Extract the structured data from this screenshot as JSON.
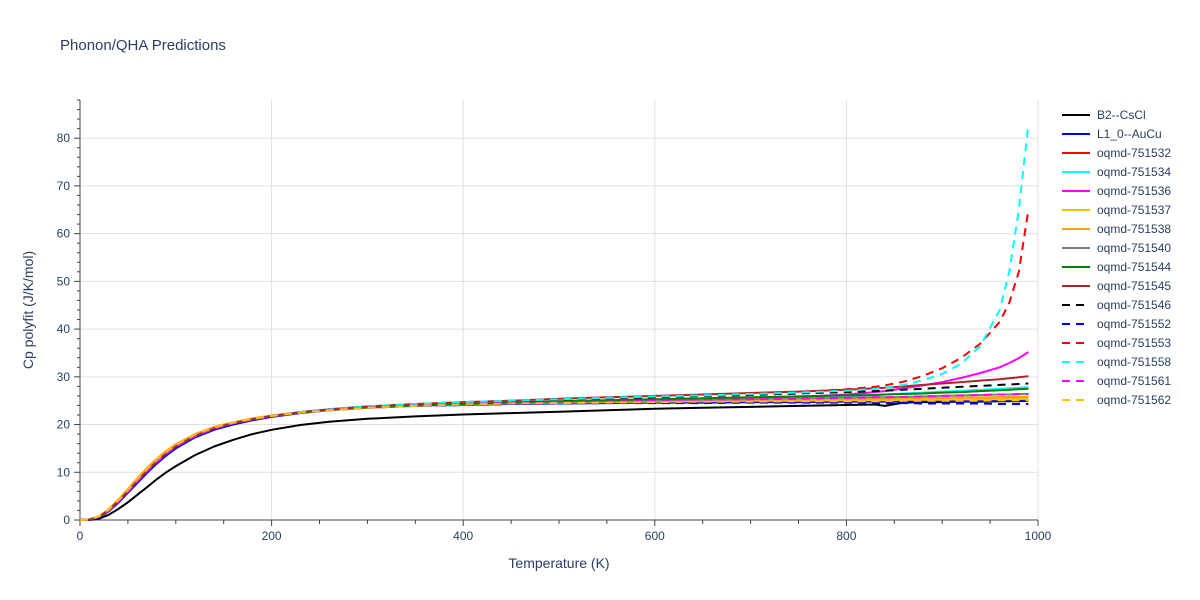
{
  "chart_data": {
    "type": "line",
    "title": "Phonon/QHA Predictions",
    "xlabel": "Temperature (K)",
    "ylabel": "Cp polyfit (J/K/mol)",
    "xlim": [
      0,
      1000
    ],
    "ylim": [
      0,
      88
    ],
    "xticks": [
      0,
      200,
      400,
      600,
      800,
      1000
    ],
    "yticks": [
      0,
      10,
      20,
      30,
      40,
      50,
      60,
      70,
      80
    ],
    "grid": true,
    "legend_position": "right",
    "x": [
      0,
      10,
      20,
      30,
      40,
      50,
      60,
      70,
      80,
      90,
      100,
      120,
      140,
      160,
      180,
      200,
      230,
      260,
      300,
      350,
      400,
      450,
      500,
      550,
      600,
      650,
      700,
      750,
      800,
      830,
      840,
      860,
      880,
      900,
      920,
      940,
      960,
      970,
      980,
      990
    ],
    "series": [
      {
        "name": "B2--CsCl",
        "color": "#000000",
        "dash": "solid",
        "values": [
          0,
          0,
          0.3,
          1.1,
          2.3,
          3.7,
          5.3,
          6.9,
          8.5,
          10.0,
          11.3,
          13.6,
          15.4,
          16.8,
          18.0,
          18.9,
          19.9,
          20.6,
          21.2,
          21.7,
          22.1,
          22.4,
          22.7,
          23.0,
          23.3,
          23.5,
          23.7,
          23.9,
          24.1,
          24.2,
          23.9,
          24.6,
          24.7,
          24.7,
          24.8,
          24.8,
          24.9,
          24.9,
          24.9,
          25.0
        ]
      },
      {
        "name": "L1_0--AuCu",
        "color": "#0000ff",
        "dash": "solid",
        "values": [
          0,
          0.1,
          0.6,
          1.8,
          3.6,
          5.7,
          7.8,
          9.9,
          11.8,
          13.5,
          15.0,
          17.3,
          18.9,
          20.0,
          20.9,
          21.6,
          22.4,
          23.0,
          23.5,
          23.9,
          24.1,
          24.3,
          24.4,
          24.5,
          24.6,
          24.6,
          24.7,
          24.7,
          24.8,
          24.8,
          24.8,
          24.8,
          24.9,
          24.9,
          24.9,
          24.9,
          25.0,
          25.0,
          25.0,
          25.0
        ]
      },
      {
        "name": "oqmd-751532",
        "color": "#ff0000",
        "dash": "solid",
        "values": [
          0,
          0.1,
          0.7,
          2.0,
          3.9,
          6.0,
          8.2,
          10.3,
          12.2,
          13.9,
          15.4,
          17.6,
          19.2,
          20.3,
          21.1,
          21.8,
          22.5,
          23.1,
          23.6,
          24.0,
          24.3,
          24.5,
          24.7,
          24.8,
          24.9,
          25.0,
          25.1,
          25.2,
          25.3,
          25.3,
          25.4,
          25.4,
          25.5,
          25.5,
          25.6,
          25.6,
          25.7,
          25.7,
          25.8,
          25.8
        ]
      },
      {
        "name": "oqmd-751534",
        "color": "#00ffff",
        "dash": "solid",
        "values": [
          0,
          0.1,
          0.7,
          2.0,
          3.9,
          6.0,
          8.2,
          10.3,
          12.2,
          13.9,
          15.4,
          17.6,
          19.2,
          20.3,
          21.1,
          21.8,
          22.5,
          23.1,
          23.6,
          24.0,
          24.3,
          24.6,
          24.8,
          25.0,
          25.2,
          25.4,
          25.6,
          25.8,
          26.0,
          26.2,
          26.3,
          26.5,
          26.7,
          26.9,
          27.1,
          27.3,
          27.5,
          27.6,
          27.7,
          27.8
        ]
      },
      {
        "name": "oqmd-751536",
        "color": "#ff00ff",
        "dash": "solid",
        "values": [
          0,
          0.1,
          0.7,
          2.0,
          3.9,
          6.0,
          8.2,
          10.3,
          12.2,
          13.9,
          15.4,
          17.6,
          19.2,
          20.3,
          21.1,
          21.8,
          22.5,
          23.1,
          23.6,
          24.0,
          24.3,
          24.6,
          24.8,
          25.0,
          25.2,
          25.4,
          25.6,
          25.8,
          26.3,
          26.8,
          27.0,
          27.6,
          28.2,
          28.9,
          29.8,
          30.8,
          32.0,
          32.9,
          33.9,
          35.2
        ]
      },
      {
        "name": "oqmd-751537",
        "color": "#ffc000",
        "dash": "solid",
        "values": [
          0,
          0.1,
          0.8,
          2.2,
          4.1,
          6.3,
          8.6,
          10.7,
          12.6,
          14.3,
          15.7,
          17.9,
          19.4,
          20.4,
          21.2,
          21.8,
          22.5,
          23.0,
          23.5,
          23.9,
          24.2,
          24.4,
          24.6,
          24.7,
          24.8,
          24.9,
          25.0,
          25.0,
          25.1,
          25.1,
          25.1,
          25.2,
          25.2,
          25.2,
          25.3,
          25.3,
          25.3,
          25.3,
          25.4,
          25.4
        ]
      },
      {
        "name": "oqmd-751538",
        "color": "#ffa500",
        "dash": "solid",
        "values": [
          0,
          0.1,
          0.8,
          2.3,
          4.3,
          6.5,
          8.8,
          10.9,
          12.8,
          14.5,
          15.9,
          18.0,
          19.5,
          20.5,
          21.3,
          21.9,
          22.6,
          23.1,
          23.6,
          24.0,
          24.3,
          24.5,
          24.7,
          24.8,
          24.9,
          25.0,
          25.1,
          25.2,
          25.3,
          25.4,
          25.4,
          25.5,
          25.5,
          25.6,
          25.6,
          25.7,
          25.7,
          25.8,
          25.8,
          25.8
        ]
      },
      {
        "name": "oqmd-751540",
        "color": "#808080",
        "dash": "solid",
        "values": [
          0,
          0.1,
          0.7,
          2.0,
          3.9,
          6.0,
          8.2,
          10.3,
          12.2,
          13.9,
          15.4,
          17.6,
          19.2,
          20.3,
          21.1,
          21.8,
          22.5,
          23.1,
          23.6,
          24.0,
          24.3,
          24.5,
          24.7,
          24.9,
          25.1,
          25.2,
          25.3,
          25.5,
          25.6,
          25.7,
          25.7,
          25.8,
          25.9,
          26.0,
          26.1,
          26.2,
          26.3,
          26.3,
          26.4,
          26.4
        ]
      },
      {
        "name": "oqmd-751544",
        "color": "#008000",
        "dash": "solid",
        "values": [
          0,
          0.1,
          0.7,
          2.0,
          3.9,
          6.0,
          8.2,
          10.3,
          12.2,
          13.9,
          15.4,
          17.6,
          19.2,
          20.3,
          21.1,
          21.8,
          22.5,
          23.1,
          23.6,
          24.0,
          24.3,
          24.6,
          24.9,
          25.1,
          25.3,
          25.5,
          25.7,
          25.9,
          26.1,
          26.2,
          26.3,
          26.4,
          26.5,
          26.7,
          26.8,
          27.0,
          27.2,
          27.3,
          27.4,
          27.5
        ]
      },
      {
        "name": "oqmd-751545",
        "color": "#a52a2a",
        "dash": "solid",
        "values": [
          0,
          0.1,
          0.7,
          2.0,
          3.9,
          6.0,
          8.2,
          10.3,
          12.2,
          13.9,
          15.4,
          17.6,
          19.2,
          20.3,
          21.1,
          21.8,
          22.6,
          23.2,
          23.8,
          24.3,
          24.7,
          25.0,
          25.4,
          25.7,
          26.0,
          26.3,
          26.6,
          26.9,
          27.3,
          27.6,
          27.7,
          28.0,
          28.3,
          28.6,
          28.9,
          29.2,
          29.5,
          29.7,
          29.9,
          30.1
        ]
      },
      {
        "name": "oqmd-751546",
        "color": "#000000",
        "dash": "dash",
        "values": [
          0,
          0.1,
          0.7,
          2.0,
          3.9,
          6.0,
          8.2,
          10.3,
          12.2,
          13.9,
          15.4,
          17.6,
          19.2,
          20.3,
          21.1,
          21.8,
          22.6,
          23.2,
          23.8,
          24.2,
          24.6,
          24.9,
          25.2,
          25.5,
          25.7,
          26.0,
          26.2,
          26.5,
          26.8,
          27.0,
          27.1,
          27.3,
          27.5,
          27.7,
          27.9,
          28.1,
          28.3,
          28.4,
          28.5,
          28.6
        ]
      },
      {
        "name": "oqmd-751552",
        "color": "#0000ff",
        "dash": "dash",
        "values": [
          0,
          0.1,
          0.7,
          2.0,
          3.9,
          6.0,
          8.2,
          10.3,
          12.2,
          13.9,
          15.4,
          17.6,
          19.2,
          20.3,
          21.1,
          21.8,
          22.5,
          23.0,
          23.5,
          23.9,
          24.1,
          24.3,
          24.4,
          24.5,
          24.5,
          24.5,
          24.6,
          24.6,
          24.6,
          24.5,
          24.5,
          24.5,
          24.4,
          24.4,
          24.4,
          24.4,
          24.3,
          24.3,
          24.3,
          24.3
        ]
      },
      {
        "name": "oqmd-751553",
        "color": "#ff0000",
        "dash": "dash",
        "values": [
          0,
          0.1,
          0.7,
          2.0,
          3.9,
          6.0,
          8.2,
          10.3,
          12.2,
          13.9,
          15.4,
          17.6,
          19.2,
          20.3,
          21.1,
          21.8,
          22.6,
          23.2,
          23.8,
          24.3,
          24.7,
          25.0,
          25.3,
          25.6,
          25.9,
          26.2,
          26.5,
          26.8,
          27.4,
          27.9,
          28.2,
          29.0,
          30.2,
          31.8,
          34.0,
          37.0,
          41.5,
          45.5,
          52.0,
          65.0
        ]
      },
      {
        "name": "oqmd-751558",
        "color": "#00ffff",
        "dash": "dash",
        "values": [
          0,
          0.1,
          0.7,
          2.0,
          3.9,
          6.0,
          8.2,
          10.3,
          12.2,
          13.9,
          15.4,
          17.6,
          19.2,
          20.3,
          21.1,
          21.8,
          22.6,
          23.2,
          23.8,
          24.3,
          24.7,
          25.0,
          25.3,
          25.6,
          25.9,
          26.1,
          26.4,
          26.7,
          27.1,
          27.5,
          27.7,
          28.3,
          29.3,
          30.6,
          32.8,
          36.5,
          44.0,
          52.0,
          65.0,
          83.0
        ]
      },
      {
        "name": "oqmd-751561",
        "color": "#ff00ff",
        "dash": "dash",
        "values": [
          0,
          0.1,
          0.7,
          2.0,
          3.9,
          6.0,
          8.2,
          10.3,
          12.2,
          13.9,
          15.4,
          17.6,
          19.2,
          20.3,
          21.1,
          21.8,
          22.5,
          23.1,
          23.6,
          24.0,
          24.3,
          24.5,
          24.7,
          24.8,
          25.0,
          25.1,
          25.3,
          25.4,
          25.6,
          25.7,
          25.7,
          25.8,
          25.9,
          26.0,
          26.1,
          26.2,
          26.3,
          26.3,
          26.4,
          26.4
        ]
      },
      {
        "name": "oqmd-751562",
        "color": "#ffc000",
        "dash": "dash",
        "values": [
          0,
          0.1,
          0.8,
          2.2,
          4.1,
          6.3,
          8.6,
          10.7,
          12.6,
          14.3,
          15.7,
          17.9,
          19.4,
          20.4,
          21.2,
          21.8,
          22.5,
          23.0,
          23.5,
          23.9,
          24.2,
          24.4,
          24.5,
          24.6,
          24.7,
          24.8,
          24.8,
          24.9,
          24.9,
          24.9,
          24.9,
          25.0,
          25.0,
          25.0,
          25.0,
          25.0,
          25.1,
          25.1,
          25.1,
          25.1
        ]
      }
    ]
  }
}
